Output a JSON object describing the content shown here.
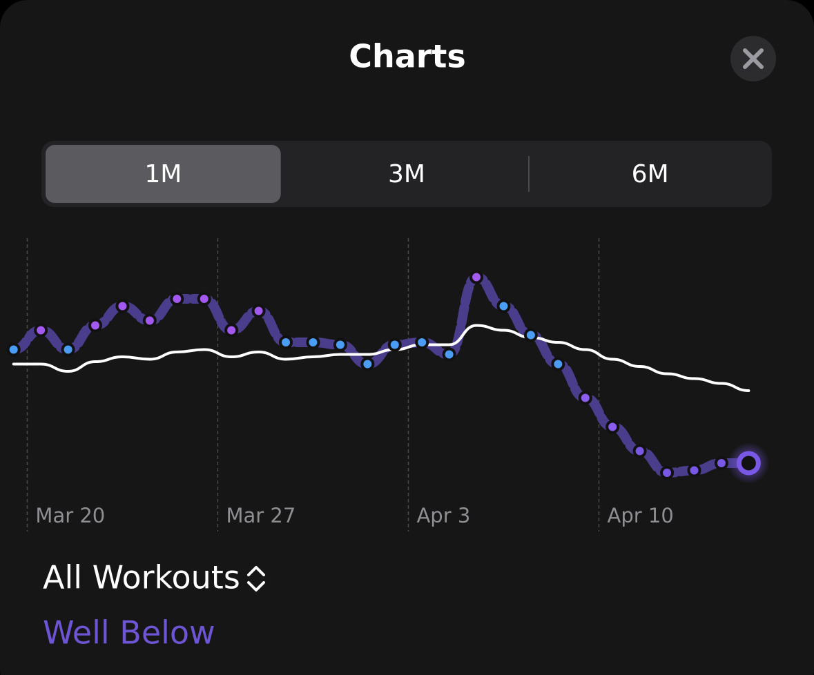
{
  "header": {
    "title": "Charts"
  },
  "segments": {
    "options": [
      "1M",
      "3M",
      "6M"
    ],
    "selected": 0
  },
  "chart_data": {
    "type": "line",
    "x": [
      0,
      1,
      2,
      3,
      4,
      5,
      6,
      7,
      8,
      9,
      10,
      11,
      12,
      13,
      14,
      15,
      16,
      17,
      18,
      19,
      20,
      21,
      22,
      23,
      24,
      25,
      26,
      27
    ],
    "xlim": [
      -0.5,
      29.4
    ],
    "xticks": [
      {
        "value": 0.5,
        "label": "Mar 20"
      },
      {
        "value": 7.5,
        "label": "Mar 27"
      },
      {
        "value": 14.5,
        "label": "Apr 3"
      },
      {
        "value": 21.5,
        "label": "Apr 10"
      }
    ],
    "ylim": [
      0,
      100
    ],
    "grid": true,
    "series": [
      {
        "color": "#4a3d8c",
        "values": [
          61,
          69,
          61,
          71,
          79,
          73,
          82,
          82,
          69,
          77,
          64,
          64,
          63,
          55,
          63,
          64,
          59,
          91,
          79,
          67,
          55,
          41,
          29,
          19,
          10,
          11,
          14,
          14
        ],
        "colors": [
          "#4a9cf5",
          "#a358f0",
          "#4a9cf5",
          "#a358f0",
          "#a358f0",
          "#a358f0",
          "#a358f0",
          "#a358f0",
          "#a358f0",
          "#a358f0",
          "#4a9cf5",
          "#4a9cf5",
          "#4a9cf5",
          "#4a9cf5",
          "#4a9cf5",
          "#4a9cf5",
          "#4a9cf5",
          "#a358f0",
          "#4a9cf5",
          "#4a9cf5",
          "#4a9cf5",
          "#8b5cf0",
          "#8b5cf0",
          "#7a58e6",
          "#7a58e6",
          "#7a58e6",
          "#7a58e6",
          "#7a58e6"
        ]
      },
      {
        "color": "#ffffff",
        "values": [
          55,
          55,
          52,
          56,
          58,
          57,
          60,
          61,
          58,
          60,
          57,
          58,
          59,
          59,
          61,
          63,
          63,
          71,
          69,
          66,
          64,
          61,
          57,
          54,
          51,
          49,
          47,
          44
        ]
      }
    ]
  },
  "footer": {
    "filter": "All Workouts",
    "status": "Well Below"
  }
}
